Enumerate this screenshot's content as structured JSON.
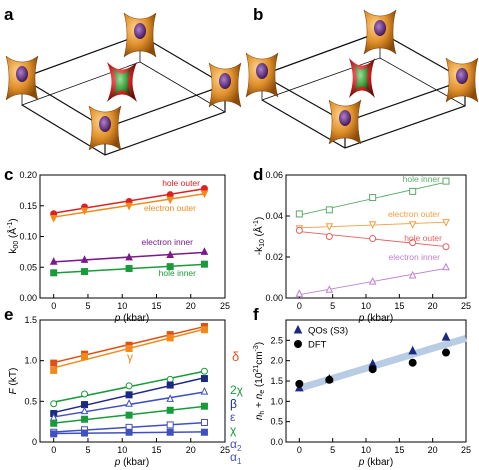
{
  "panel_labels": {
    "a": "a",
    "b": "b",
    "c": "c",
    "d": "d",
    "e": "e",
    "f": "f"
  },
  "colors": {
    "pocket_orange": "#e0902a",
    "pocket_purple": "#5a2a7a",
    "pocket_red": "#c82020",
    "pocket_green": "#3a9a3a",
    "red": "#e02020",
    "orange": "#f08a1c",
    "purple": "#7a1a8a",
    "green": "#1a9a3a",
    "light_green": "#5aaa6a",
    "light_orange": "#f0a040",
    "light_red": "#e86060",
    "light_purple": "#c080d0",
    "navy": "#1a2a80",
    "blue": "#4050c0",
    "dark_orange": "#e05010",
    "band": "#b8cce4",
    "black": "#000000"
  },
  "chart_data": [
    {
      "panel": "c",
      "type": "line",
      "xlabel": "p (kbar)",
      "ylabel": "k00 (Å-1)",
      "xlim": [
        -2,
        25
      ],
      "ylim": [
        0,
        0.2
      ],
      "xticks": [
        "0",
        "5",
        "10",
        "15",
        "20",
        "25"
      ],
      "yticks": [
        "0.00",
        "0.05",
        "0.10",
        "0.15",
        "0.20"
      ],
      "series": [
        {
          "name": "hole outer",
          "marker": "circle",
          "x": [
            0,
            4.5,
            11,
            17,
            22
          ],
          "values": [
            0.137,
            0.148,
            0.157,
            0.168,
            0.178
          ]
        },
        {
          "name": "electron outer",
          "marker": "triangle-down",
          "x": [
            0,
            4.5,
            11,
            17,
            22
          ],
          "values": [
            0.13,
            0.142,
            0.15,
            0.16,
            0.17
          ]
        },
        {
          "name": "electron inner",
          "marker": "triangle",
          "x": [
            0,
            4.5,
            11,
            17,
            22
          ],
          "values": [
            0.059,
            0.062,
            0.066,
            0.07,
            0.075
          ]
        },
        {
          "name": "hole inner",
          "marker": "square",
          "x": [
            0,
            4.5,
            11,
            17,
            22
          ],
          "values": [
            0.041,
            0.043,
            0.048,
            0.051,
            0.055
          ]
        }
      ]
    },
    {
      "panel": "d",
      "type": "line",
      "xlabel": "p (kbar)",
      "ylabel": "-k10 (Å-1)",
      "xlim": [
        -2,
        25
      ],
      "ylim": [
        0,
        0.06
      ],
      "xticks": [
        "0",
        "5",
        "10",
        "15",
        "20",
        "25"
      ],
      "yticks": [
        "0.00",
        "0.02",
        "0.04",
        "0.06"
      ],
      "series": [
        {
          "name": "hole inner",
          "marker": "square-open",
          "x": [
            0,
            4.5,
            11,
            17,
            22
          ],
          "values": [
            0.041,
            0.043,
            0.049,
            0.052,
            0.057
          ]
        },
        {
          "name": "electron outer",
          "marker": "triangle-down-open",
          "x": [
            0,
            4.5,
            11,
            17,
            22
          ],
          "values": [
            0.034,
            0.035,
            0.036,
            0.036,
            0.037
          ]
        },
        {
          "name": "hole outer",
          "marker": "circle-open",
          "x": [
            0,
            4.5,
            11,
            17,
            22
          ],
          "values": [
            0.033,
            0.03,
            0.029,
            0.027,
            0.025
          ]
        },
        {
          "name": "electron inner",
          "marker": "triangle-open",
          "x": [
            0,
            4.5,
            11,
            17,
            22
          ],
          "values": [
            0.002,
            0.004,
            0.008,
            0.011,
            0.015
          ]
        }
      ]
    },
    {
      "panel": "e",
      "type": "line",
      "xlabel": "p (kbar)",
      "ylabel": "F (kT)",
      "xlim": [
        -2,
        25
      ],
      "ylim": [
        0,
        1.5
      ],
      "xticks": [
        "0",
        "5",
        "10",
        "15",
        "20",
        "25"
      ],
      "yticks": [
        "0",
        "0.5",
        "1.0",
        "1.5"
      ],
      "series": [
        {
          "name": "δ",
          "marker": "square",
          "x": [
            0,
            4.5,
            11,
            17,
            22
          ],
          "values": [
            0.97,
            1.08,
            1.19,
            1.32,
            1.42
          ]
        },
        {
          "name": "γ",
          "marker": "square",
          "x": [
            0,
            4.5,
            11,
            17,
            22
          ],
          "values": [
            0.88,
            1.05,
            1.15,
            1.28,
            1.38
          ]
        },
        {
          "name": "2χ",
          "marker": "circle-open",
          "x": [
            0,
            4.5,
            11,
            17,
            22
          ],
          "values": [
            0.47,
            0.59,
            0.69,
            0.77,
            0.87
          ]
        },
        {
          "name": "β",
          "marker": "square",
          "x": [
            0,
            4.5,
            11,
            17,
            22
          ],
          "values": [
            0.35,
            0.46,
            0.58,
            0.7,
            0.78
          ]
        },
        {
          "name": "ε",
          "marker": "triangle-open",
          "x": [
            0,
            4.5,
            11,
            17,
            22
          ],
          "values": [
            0.3,
            0.38,
            0.47,
            0.53,
            0.62
          ]
        },
        {
          "name": "χ",
          "marker": "square",
          "x": [
            0,
            4.5,
            11,
            17,
            22
          ],
          "values": [
            0.23,
            0.28,
            0.33,
            0.39,
            0.44
          ]
        },
        {
          "name": "α2",
          "marker": "square-open",
          "x": [
            0,
            4.5,
            11,
            17,
            22
          ],
          "values": [
            0.12,
            0.15,
            0.18,
            0.21,
            0.24
          ]
        },
        {
          "name": "α1",
          "marker": "square",
          "x": [
            0,
            4.5,
            11,
            17,
            22
          ],
          "values": [
            0.1,
            0.11,
            0.12,
            0.12,
            0.12
          ]
        }
      ]
    },
    {
      "panel": "f",
      "type": "scatter",
      "xlabel": "p (kbar)",
      "ylabel": "nh + ne (10^21cm-3)",
      "xlim": [
        -2,
        25
      ],
      "ylim": [
        0,
        3.0
      ],
      "xticks": [
        "0",
        "5",
        "10",
        "15",
        "20",
        "25"
      ],
      "yticks": [
        "0.0",
        "0.5",
        "1.0",
        "1.5",
        "2.0",
        "2.5"
      ],
      "fit_band": {
        "x": [
          0,
          25
        ],
        "values": [
          1.32,
          2.55
        ]
      },
      "series": [
        {
          "name": "QOs (S3)",
          "marker": "triangle",
          "x": [
            0,
            4.5,
            11,
            17,
            22
          ],
          "values": [
            1.33,
            1.55,
            1.92,
            2.24,
            2.58
          ]
        },
        {
          "name": "DFT",
          "marker": "circle",
          "x": [
            0,
            4.5,
            11,
            17,
            22
          ],
          "values": [
            1.43,
            1.53,
            1.79,
            1.95,
            2.2
          ]
        }
      ]
    }
  ]
}
